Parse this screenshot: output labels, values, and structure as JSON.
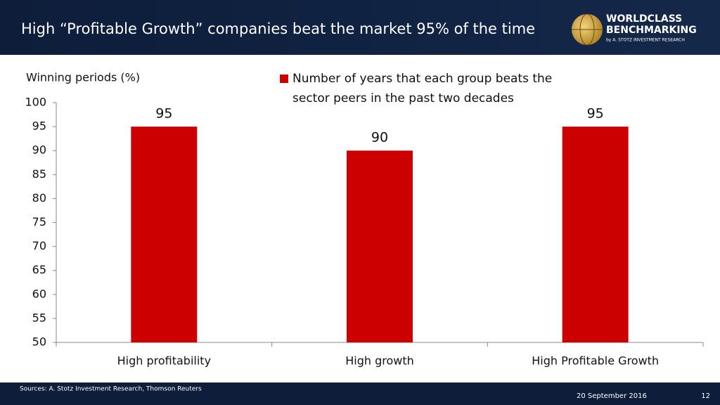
{
  "header": {
    "title": "High “Profitable Growth” companies beat the market 95% of the time",
    "logo": {
      "line1": "WORLDCLASS",
      "line2": "BENCHMARKING",
      "byline": "by A. STOTZ INVESTMENT RESEARCH"
    }
  },
  "chart_data": {
    "type": "bar",
    "y_label": "Winning periods (%)",
    "categories": [
      "High profitability",
      "High growth",
      "High Profitable Growth"
    ],
    "series": [
      {
        "name": "Number of years that each group beats the sector peers in the past two decades",
        "color": "#cc0000",
        "values": [
          95,
          90,
          95
        ]
      }
    ],
    "ylim": [
      50,
      100
    ],
    "yticks": [
      50,
      55,
      60,
      65,
      70,
      75,
      80,
      85,
      90,
      95,
      100
    ],
    "grid": false,
    "legend": "top"
  },
  "footer": {
    "sources": "Sources: A. Stotz Investment Research, Thomson Reuters",
    "date": "20 September 2016",
    "page": "12"
  }
}
